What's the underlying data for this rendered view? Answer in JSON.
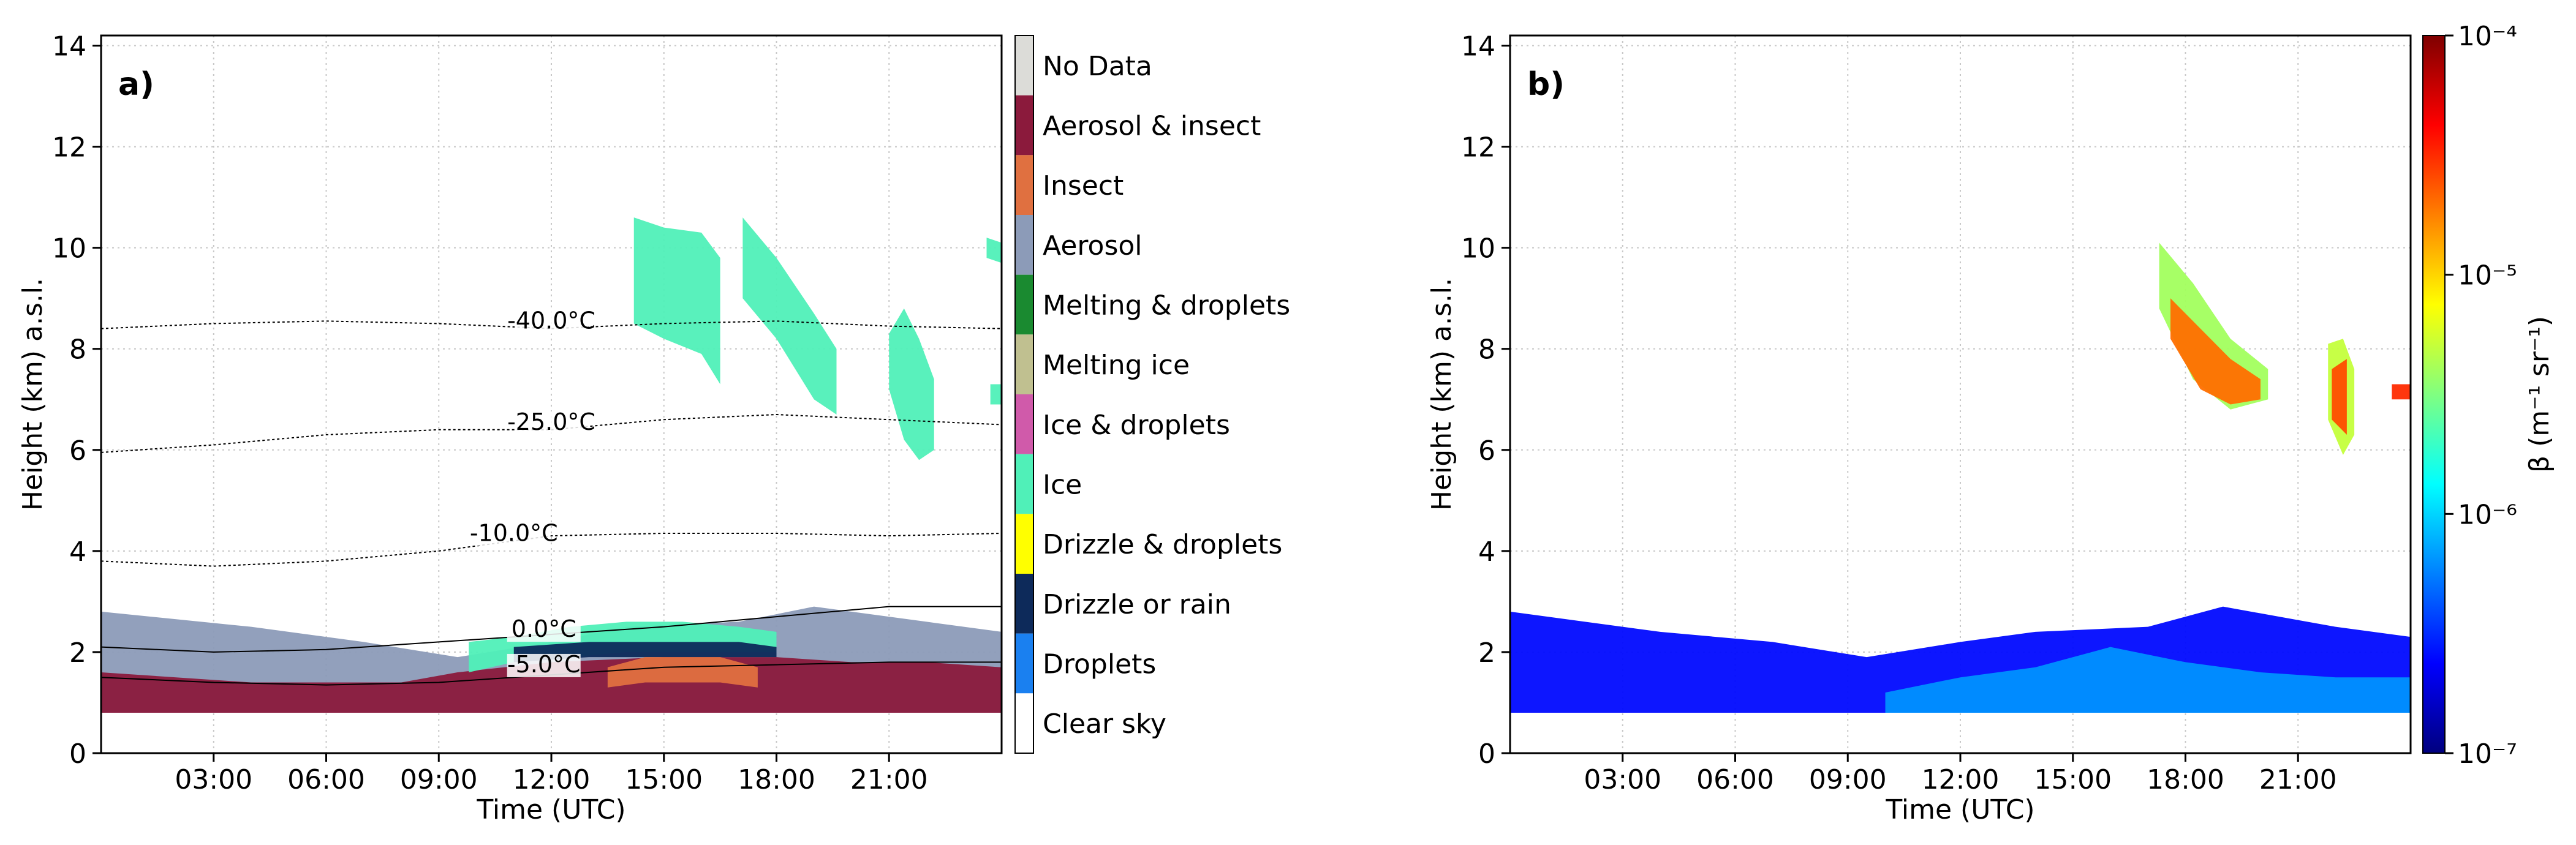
{
  "chart_data": [
    {
      "panel_label": "a)",
      "type": "heatmap",
      "title": "",
      "xlabel": "Time (UTC)",
      "ylabel": "Height (km) a.s.l.",
      "xlim": [
        0,
        24
      ],
      "ylim": [
        0,
        14.2
      ],
      "xticks": [
        3,
        6,
        9,
        12,
        15,
        18,
        21
      ],
      "xtick_labels": [
        "03:00",
        "06:00",
        "09:00",
        "12:00",
        "15:00",
        "18:00",
        "21:00"
      ],
      "yticks": [
        0,
        2,
        4,
        6,
        8,
        10,
        12,
        14
      ],
      "ytick_labels": [
        "0",
        "2",
        "4",
        "6",
        "8",
        "10",
        "12",
        "14"
      ],
      "grid": true,
      "categories": [
        {
          "label": "No Data",
          "color": "#dcdcd8"
        },
        {
          "label": "Aerosol & insect",
          "color": "#8b1a3c"
        },
        {
          "label": "Insect",
          "color": "#e07040"
        },
        {
          "label": "Aerosol",
          "color": "#8c9bb8"
        },
        {
          "label": "Melting & droplets",
          "color": "#1a8a30"
        },
        {
          "label": "Melting ice",
          "color": "#c0c090"
        },
        {
          "label": "Ice & droplets",
          "color": "#d05aaa"
        },
        {
          "label": "Ice",
          "color": "#50f0b8"
        },
        {
          "label": "Drizzle & droplets",
          "color": "#ffff00"
        },
        {
          "label": "Drizzle or rain",
          "color": "#0d2a5a"
        },
        {
          "label": "Droplets",
          "color": "#1a80f0"
        },
        {
          "label": "Clear  sky",
          "color": "#ffffff"
        }
      ],
      "regions": [
        {
          "class": "Aerosol",
          "t": [
            0,
            4,
            7,
            9.5,
            12,
            14,
            17,
            19,
            22,
            24
          ],
          "top": [
            2.8,
            2.5,
            2.2,
            1.9,
            2.2,
            2.5,
            2.6,
            2.9,
            2.6,
            2.4
          ],
          "bottom": [
            0.8,
            0.8,
            0.8,
            0.8,
            0.8,
            0.8,
            0.8,
            0.8,
            0.8,
            0.8
          ]
        },
        {
          "class": "Aerosol & insect",
          "t": [
            0,
            4,
            8,
            9.5,
            12,
            15,
            18,
            20,
            22,
            24
          ],
          "top": [
            1.6,
            1.4,
            1.4,
            1.6,
            1.8,
            1.9,
            1.9,
            1.8,
            1.8,
            1.7
          ],
          "bottom": [
            0.8,
            0.8,
            0.8,
            0.8,
            0.8,
            0.8,
            0.8,
            0.8,
            0.8,
            0.8
          ]
        },
        {
          "class": "Ice",
          "t": [
            9.8,
            11,
            12.5,
            14,
            15.5,
            17,
            18
          ],
          "top": [
            2.2,
            2.3,
            2.5,
            2.6,
            2.6,
            2.5,
            2.4
          ],
          "bottom": [
            1.6,
            1.8,
            1.9,
            2.0,
            2.0,
            2.0,
            2.0
          ]
        },
        {
          "class": "Drizzle or rain",
          "t": [
            11,
            13,
            15,
            17,
            18
          ],
          "top": [
            2.1,
            2.2,
            2.2,
            2.2,
            2.1
          ],
          "bottom": [
            1.8,
            1.9,
            1.9,
            1.9,
            1.9
          ]
        },
        {
          "class": "Insect",
          "t": [
            13.5,
            14.5,
            15.5,
            16.5,
            17.5
          ],
          "top": [
            1.7,
            1.9,
            1.9,
            1.9,
            1.7
          ],
          "bottom": [
            1.3,
            1.4,
            1.4,
            1.4,
            1.3
          ]
        },
        {
          "class": "Ice",
          "t": [
            14.2,
            15,
            16,
            16.5
          ],
          "top": [
            10.6,
            10.4,
            10.3,
            9.8
          ],
          "bottom": [
            8.5,
            8.2,
            7.9,
            7.3
          ]
        },
        {
          "class": "Ice",
          "t": [
            17.1,
            18,
            19,
            19.6
          ],
          "top": [
            10.6,
            9.8,
            8.7,
            8.0
          ],
          "bottom": [
            9.0,
            8.2,
            7.0,
            6.7
          ]
        },
        {
          "class": "Ice",
          "t": [
            21.0,
            21.4,
            21.8,
            22.2
          ],
          "top": [
            8.3,
            8.8,
            8.2,
            7.4
          ],
          "bottom": [
            7.2,
            6.2,
            5.8,
            6.0
          ]
        },
        {
          "class": "Ice",
          "t": [
            23.6,
            24
          ],
          "top": [
            10.2,
            10.1
          ],
          "bottom": [
            9.8,
            9.7
          ]
        },
        {
          "class": "Ice",
          "t": [
            23.7,
            24
          ],
          "top": [
            7.3,
            7.3
          ],
          "bottom": [
            6.9,
            6.9
          ]
        }
      ],
      "contours": [
        {
          "label": "-40.0°C",
          "label_at": [
            12.0,
            8.4
          ],
          "t": [
            0,
            3,
            6,
            9,
            12,
            15,
            18,
            21,
            24
          ],
          "h": [
            8.4,
            8.5,
            8.55,
            8.5,
            8.4,
            8.5,
            8.55,
            8.45,
            8.4
          ]
        },
        {
          "label": "-25.0°C",
          "label_at": [
            12.0,
            6.4
          ],
          "t": [
            0,
            3,
            6,
            9,
            12,
            15,
            18,
            21,
            24
          ],
          "h": [
            5.95,
            6.1,
            6.3,
            6.4,
            6.4,
            6.6,
            6.7,
            6.6,
            6.5
          ]
        },
        {
          "label": "-10.0°C",
          "label_at": [
            11.0,
            4.2
          ],
          "t": [
            0,
            3,
            6,
            9,
            12,
            15,
            18,
            21,
            24
          ],
          "h": [
            3.8,
            3.7,
            3.8,
            4.0,
            4.3,
            4.35,
            4.35,
            4.3,
            4.35
          ]
        },
        {
          "label": "0.0°C",
          "label_at": [
            11.8,
            2.3
          ],
          "t": [
            0,
            3,
            6,
            9,
            12,
            15,
            18,
            21,
            24
          ],
          "h": [
            2.1,
            2.0,
            2.05,
            2.2,
            2.35,
            2.5,
            2.7,
            2.9,
            2.9
          ]
        },
        {
          "label": "-5.0°C",
          "label_at": [
            11.8,
            1.6
          ],
          "t": [
            0,
            3,
            6,
            9,
            12,
            15,
            18,
            21,
            24
          ],
          "h": [
            1.5,
            1.4,
            1.35,
            1.4,
            1.55,
            1.7,
            1.75,
            1.8,
            1.8
          ]
        }
      ]
    },
    {
      "panel_label": "b)",
      "type": "heatmap",
      "title": "",
      "xlabel": "Time (UTC)",
      "ylabel": "Height (km) a.s.l.",
      "xlim": [
        0,
        24
      ],
      "ylim": [
        0,
        14.2
      ],
      "xticks": [
        3,
        6,
        9,
        12,
        15,
        18,
        21
      ],
      "xtick_labels": [
        "03:00",
        "06:00",
        "09:00",
        "12:00",
        "15:00",
        "18:00",
        "21:00"
      ],
      "yticks": [
        0,
        2,
        4,
        6,
        8,
        10,
        12,
        14
      ],
      "ytick_labels": [
        "0",
        "2",
        "4",
        "6",
        "8",
        "10",
        "12",
        "14"
      ],
      "grid": true,
      "colorbar": {
        "label": "β (m⁻¹ sr⁻¹)",
        "scale": "log",
        "range": [
          1e-07,
          0.0001
        ],
        "ticks": [
          0.0001,
          1e-05,
          1e-06,
          1e-07
        ],
        "tick_labels": [
          "10⁻⁴",
          "10⁻⁵",
          "10⁻⁶",
          "10⁻⁷"
        ],
        "colormap": [
          "#00007f",
          "#0000ff",
          "#0080ff",
          "#00ffff",
          "#80ff80",
          "#ffff00",
          "#ff8000",
          "#ff0000",
          "#7f0000"
        ]
      },
      "regions": [
        {
          "log_beta": -6.6,
          "t": [
            0,
            4,
            7,
            9.5,
            12,
            14,
            17,
            19,
            22,
            24
          ],
          "top": [
            2.8,
            2.4,
            2.2,
            1.9,
            2.2,
            2.4,
            2.5,
            2.9,
            2.5,
            2.3
          ],
          "bottom": [
            0.8,
            0.8,
            0.8,
            0.8,
            0.8,
            0.8,
            0.8,
            0.8,
            0.8,
            0.8
          ]
        },
        {
          "log_beta": -6.2,
          "t": [
            10,
            12,
            14,
            16,
            18,
            20,
            22,
            24
          ],
          "top": [
            1.2,
            1.5,
            1.7,
            2.1,
            1.8,
            1.6,
            1.5,
            1.5
          ],
          "bottom": [
            0.8,
            0.8,
            0.8,
            0.8,
            0.8,
            0.8,
            0.8,
            0.8
          ]
        },
        {
          "log_beta": -5.4,
          "t": [
            17.3,
            18.2,
            19.2,
            20.2
          ],
          "top": [
            10.1,
            9.3,
            8.2,
            7.6
          ],
          "bottom": [
            8.8,
            7.4,
            6.8,
            7.0
          ]
        },
        {
          "log_beta": -4.7,
          "t": [
            17.6,
            18.4,
            19.2,
            20.0
          ],
          "top": [
            9.0,
            8.4,
            7.8,
            7.4
          ],
          "bottom": [
            8.2,
            7.2,
            6.9,
            7.0
          ]
        },
        {
          "log_beta": -5.3,
          "t": [
            21.8,
            22.2,
            22.5
          ],
          "top": [
            8.1,
            8.2,
            7.6
          ],
          "bottom": [
            6.6,
            5.9,
            6.3
          ]
        },
        {
          "log_beta": -4.6,
          "t": [
            21.9,
            22.3
          ],
          "top": [
            7.6,
            7.8
          ],
          "bottom": [
            6.6,
            6.3
          ]
        },
        {
          "log_beta": -4.5,
          "t": [
            23.5,
            24
          ],
          "top": [
            7.3,
            7.3
          ],
          "bottom": [
            7.0,
            7.0
          ]
        }
      ]
    }
  ]
}
